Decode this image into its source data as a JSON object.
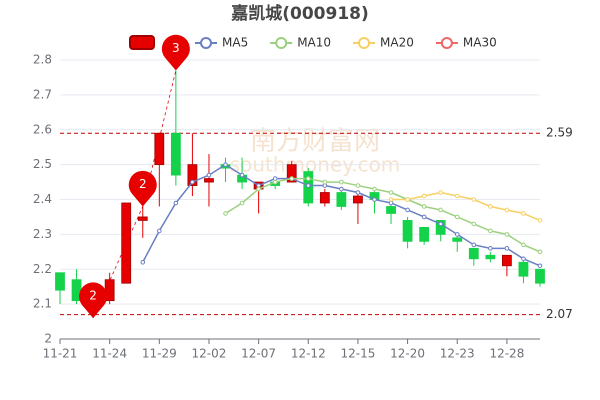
{
  "chart_data": {
    "type": "candlestick",
    "title": "嘉凯城(000918)",
    "watermark": [
      "南方财富网",
      "southmoney.com"
    ],
    "categories": [
      "11-21",
      null,
      null,
      "11-24",
      null,
      null,
      "11-29",
      null,
      null,
      "12-02",
      null,
      null,
      "12-07",
      null,
      null,
      "12-12",
      null,
      null,
      "12-15",
      null,
      null,
      "12-20",
      null,
      null,
      "12-23",
      null,
      null,
      "12-28",
      null,
      null
    ],
    "open": [
      2.19,
      2.17,
      2.1,
      2.11,
      2.16,
      2.34,
      2.5,
      2.59,
      2.44,
      2.45,
      2.5,
      2.47,
      2.43,
      2.45,
      2.45,
      2.48,
      2.39,
      2.42,
      2.39,
      2.42,
      2.38,
      2.34,
      2.32,
      2.34,
      2.29,
      2.26,
      2.24,
      2.21,
      2.22,
      2.2
    ],
    "close": [
      2.14,
      2.11,
      2.08,
      2.17,
      2.39,
      2.35,
      2.59,
      2.47,
      2.5,
      2.46,
      2.49,
      2.45,
      2.45,
      2.44,
      2.5,
      2.39,
      2.42,
      2.38,
      2.41,
      2.4,
      2.36,
      2.28,
      2.28,
      2.3,
      2.28,
      2.23,
      2.23,
      2.24,
      2.18,
      2.16
    ],
    "low": [
      2.1,
      2.1,
      2.06,
      2.1,
      2.16,
      2.29,
      2.38,
      2.44,
      2.41,
      2.38,
      2.45,
      2.43,
      2.36,
      2.43,
      2.45,
      2.38,
      2.38,
      2.37,
      2.33,
      2.36,
      2.33,
      2.26,
      2.27,
      2.28,
      2.25,
      2.21,
      2.22,
      2.18,
      2.16,
      2.15
    ],
    "high": [
      2.19,
      2.2,
      2.12,
      2.19,
      2.39,
      2.38,
      2.59,
      2.77,
      2.59,
      2.53,
      2.52,
      2.52,
      2.45,
      2.46,
      2.51,
      2.49,
      2.43,
      2.43,
      2.42,
      2.43,
      2.39,
      2.35,
      2.32,
      2.34,
      2.3,
      2.26,
      2.25,
      2.24,
      2.23,
      2.2
    ],
    "up_color": "#e60000",
    "down_color": "#14d24a",
    "series": [
      {
        "name": "MA5",
        "color": "#6a7fc4",
        "values": [
          null,
          null,
          null,
          null,
          null,
          2.22,
          2.31,
          2.39,
          2.45,
          2.47,
          2.5,
          2.47,
          2.44,
          2.46,
          2.46,
          2.44,
          2.44,
          2.43,
          2.42,
          2.4,
          2.39,
          2.37,
          2.35,
          2.33,
          2.3,
          2.27,
          2.26,
          2.26,
          2.23,
          2.21
        ]
      },
      {
        "name": "MA10",
        "color": "#9bd17e",
        "values": [
          null,
          null,
          null,
          null,
          null,
          null,
          null,
          null,
          null,
          null,
          2.36,
          2.39,
          2.43,
          2.45,
          2.46,
          2.46,
          2.45,
          2.45,
          2.44,
          2.43,
          2.42,
          2.4,
          2.38,
          2.37,
          2.35,
          2.33,
          2.31,
          2.3,
          2.27,
          2.25
        ]
      },
      {
        "name": "MA20",
        "color": "#f8cf62",
        "values": [
          null,
          null,
          null,
          null,
          null,
          null,
          null,
          null,
          null,
          null,
          null,
          null,
          null,
          null,
          null,
          null,
          null,
          null,
          null,
          null,
          2.4,
          2.4,
          2.41,
          2.42,
          2.41,
          2.4,
          2.38,
          2.37,
          2.36,
          2.34
        ]
      },
      {
        "name": "MA30",
        "color": "#ee6666",
        "values": [
          null,
          null,
          null,
          null,
          null,
          null,
          null,
          null,
          null,
          null,
          null,
          null,
          null,
          null,
          null,
          null,
          null,
          null,
          null,
          null,
          null,
          null,
          null,
          null,
          null,
          null,
          null,
          null,
          null,
          null
        ]
      }
    ],
    "markers": [
      {
        "index": 2,
        "value": 2.06,
        "label": "2"
      },
      {
        "index": 5,
        "value": 2.38,
        "label": "2"
      },
      {
        "index": 7,
        "value": 2.77,
        "label": "3"
      }
    ],
    "marker_color": "#e60000",
    "ref_lines": [
      2.59,
      2.07
    ],
    "ref_color": "#c00000",
    "ylim": [
      2,
      2.8
    ],
    "yticks": [
      2,
      2.1,
      2.2,
      2.3,
      2.4,
      2.5,
      2.6,
      2.7,
      2.8
    ],
    "grid": true
  }
}
